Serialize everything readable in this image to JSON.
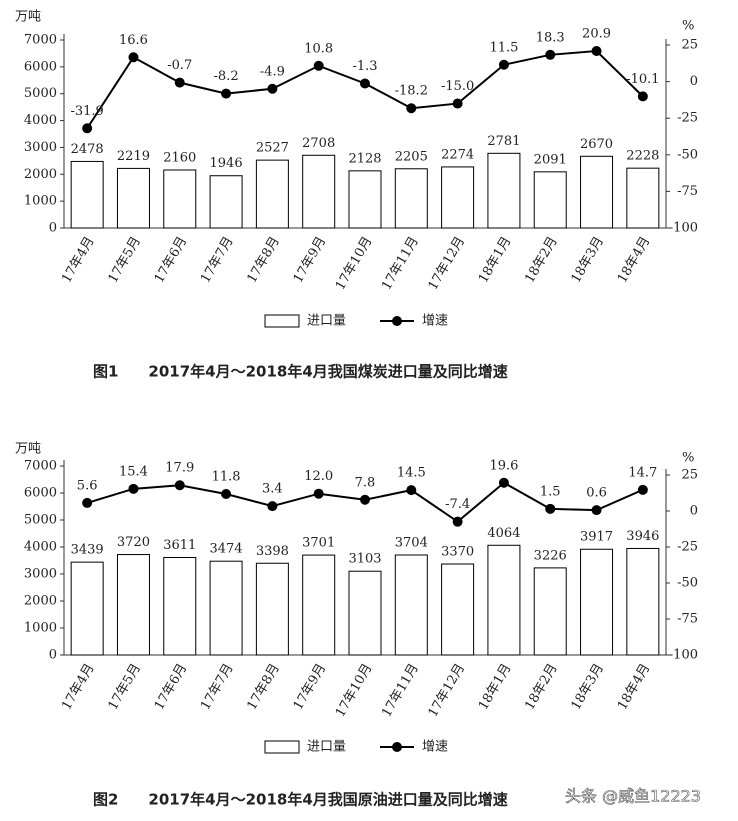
{
  "chart_data": [
    {
      "type": "bar_line",
      "title": "图1　　2017年4月～2018年4月我国煤炭进口量及同比增速",
      "y_label": "万吨",
      "y2_label": "%",
      "categories": [
        "17年4月",
        "17年5月",
        "17年6月",
        "17年7月",
        "17年8月",
        "17年9月",
        "17年10月",
        "17年11月",
        "17年12月",
        "18年1月",
        "18年2月",
        "18年3月",
        "18年4月"
      ],
      "series": [
        {
          "name": "进口量",
          "type": "bar",
          "color": "#000000",
          "values": [
            2478,
            2219,
            2160,
            1946,
            2527,
            2708,
            2128,
            2205,
            2274,
            2781,
            2091,
            2670,
            2228
          ]
        },
        {
          "name": "增速",
          "type": "line",
          "axis": "y2",
          "color": "#000000",
          "values": [
            -31.9,
            16.6,
            -0.7,
            -8.2,
            -4.9,
            10.8,
            -1.3,
            -18.2,
            -15.0,
            11.5,
            18.3,
            20.9,
            -10.1
          ],
          "value_labels": [
            "-31.9",
            "16.6",
            "-0.7",
            "-8.2",
            "-4.9",
            "10.8",
            "-1.3",
            "-18.2",
            "-15.0",
            "11.5",
            "18.3",
            "20.9",
            "-10.1"
          ]
        }
      ],
      "ylim": [
        0,
        7000
      ],
      "yticks": [
        0,
        1000,
        2000,
        3000,
        4000,
        5000,
        6000,
        7000
      ],
      "y2lim": [
        -100,
        25
      ],
      "y2ticks": [
        -100,
        -75,
        -50,
        -25,
        0,
        25
      ]
    },
    {
      "type": "bar_line",
      "title": "图2　　2017年4月～2018年4月我国原油进口量及同比增速",
      "y_label": "万吨",
      "y2_label": "%",
      "categories": [
        "17年4月",
        "17年5月",
        "17年6月",
        "17年7月",
        "17年8月",
        "17年9月",
        "17年10月",
        "17年11月",
        "17年12月",
        "18年1月",
        "18年2月",
        "18年3月",
        "18年4月"
      ],
      "series": [
        {
          "name": "进口量",
          "type": "bar",
          "color": "#000000",
          "values": [
            3439,
            3720,
            3611,
            3474,
            3398,
            3701,
            3103,
            3704,
            3370,
            4064,
            3226,
            3917,
            3946
          ]
        },
        {
          "name": "增速",
          "type": "line",
          "axis": "y2",
          "color": "#000000",
          "values": [
            5.6,
            15.4,
            17.9,
            11.8,
            3.4,
            12.0,
            7.8,
            14.5,
            -7.4,
            19.6,
            1.5,
            0.6,
            14.7
          ],
          "value_labels": [
            "5.6",
            "15.4",
            "17.9",
            "11.8",
            "3.4",
            "12.0",
            "7.8",
            "14.5",
            "-7.4",
            "19.6",
            "1.5",
            "0.6",
            "14.7"
          ]
        }
      ],
      "ylim": [
        0,
        7000
      ],
      "yticks": [
        0,
        1000,
        2000,
        3000,
        4000,
        5000,
        6000,
        7000
      ],
      "y2lim": [
        -100,
        25
      ],
      "y2ticks": [
        -100,
        -75,
        -50,
        -25,
        0,
        25
      ]
    }
  ],
  "watermark": "头条 @威鱼12223"
}
